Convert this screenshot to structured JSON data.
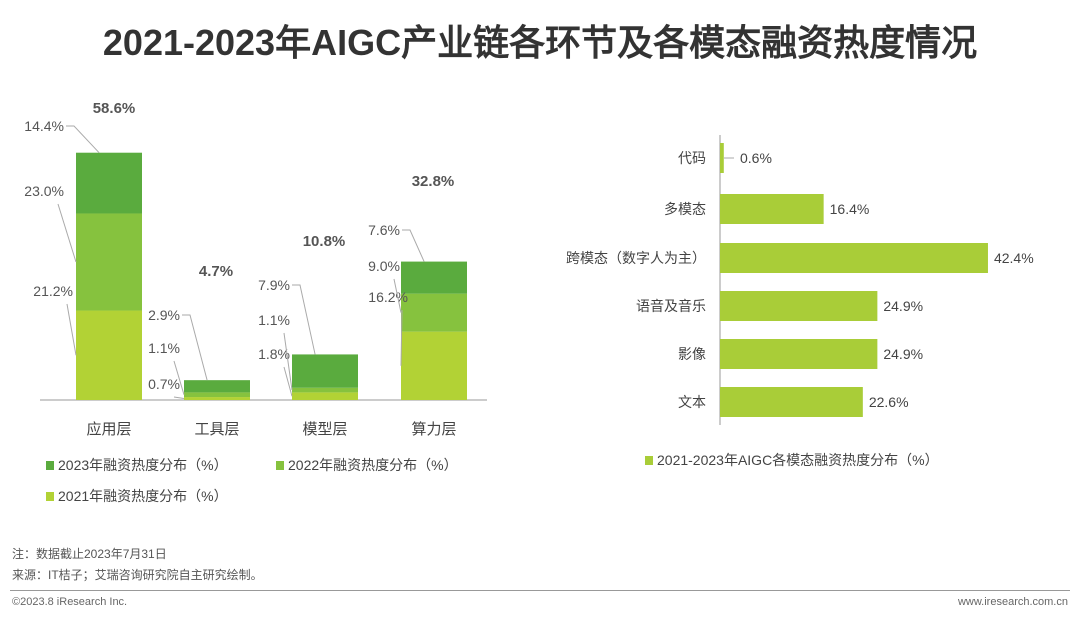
{
  "title": "2021-2023年AIGC产业链各环节及各模态融资热度情况",
  "chart_data": [
    {
      "type": "bar",
      "stacked": true,
      "categories": [
        "应用层",
        "工具层",
        "模型层",
        "算力层"
      ],
      "series": [
        {
          "name": "2021年融资热度分布（%）",
          "values": [
            21.2,
            0.7,
            1.8,
            16.2
          ],
          "color": "#b2d235"
        },
        {
          "name": "2022年融资热度分布（%）",
          "values": [
            23.0,
            1.1,
            1.1,
            9.0
          ],
          "color": "#86c23e"
        },
        {
          "name": "2023年融资热度分布（%）",
          "values": [
            14.4,
            2.9,
            7.9,
            7.6
          ],
          "color": "#5aab3e"
        }
      ],
      "totals": [
        58.6,
        4.7,
        10.8,
        32.8
      ],
      "total_labels": [
        "58.6%",
        "4.7%",
        "10.8%",
        "32.8%"
      ],
      "value_labels": [
        [
          "21.2%",
          "0.7%",
          "1.8%",
          "16.2%"
        ],
        [
          "23.0%",
          "1.1%",
          "1.1%",
          "9.0%"
        ],
        [
          "14.4%",
          "2.9%",
          "7.9%",
          "7.6%"
        ]
      ],
      "legend": [
        "2023年融资热度分布（%）",
        "2022年融资热度分布（%）",
        "2021年融资热度分布（%）"
      ],
      "legend_placement": "bottom",
      "grid": false
    },
    {
      "type": "bar",
      "orientation": "horizontal",
      "categories": [
        "代码",
        "多模态",
        "跨模态（数字人为主）",
        "语音及音乐",
        "影像",
        "文本"
      ],
      "series": [
        {
          "name": "2021-2023年AIGC各模态融资热度分布（%）",
          "values": [
            0.6,
            16.4,
            42.4,
            24.9,
            24.9,
            22.6
          ],
          "color": "#a9cd38"
        }
      ],
      "value_labels": [
        "0.6%",
        "16.4%",
        "42.4%",
        "24.9%",
        "24.9%",
        "22.6%"
      ],
      "legend_placement": "bottom",
      "grid": false
    }
  ],
  "notes": {
    "note": "注：数据截止2023年7月31日",
    "source": "来源：IT桔子；艾瑞咨询研究院自主研究绘制。"
  },
  "footer": {
    "copyright": "©2023.8 iResearch Inc.",
    "site": "www.iresearch.com.cn"
  }
}
